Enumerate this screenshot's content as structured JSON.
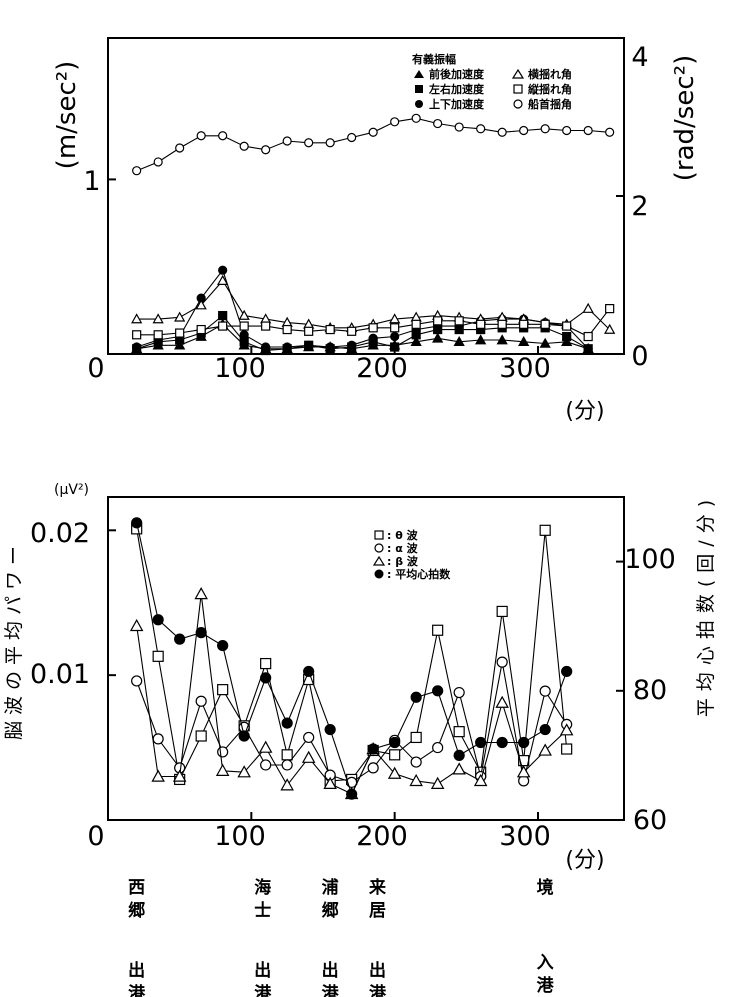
{
  "chart_data": [
    {
      "type": "line",
      "title": "有義振幅",
      "xlabel": "(分)",
      "ylabel_left": "(m/sec²)",
      "ylabel_right": "(rad/sec²)",
      "xlim": [
        0,
        360
      ],
      "ylim_left": [
        0,
        1.81
      ],
      "ylim_right": [
        0,
        4
      ],
      "x_ticks": [
        "0",
        "100",
        "200",
        "300"
      ],
      "y_ticks_left": [
        "1"
      ],
      "y_ticks_right": [
        "0",
        "2",
        "4"
      ],
      "legend_title": "有義振幅",
      "legend_position": "top-right",
      "series": [
        {
          "name": "前後加速度",
          "marker": "filled-triangle",
          "axis": "left",
          "x": [
            20,
            35,
            50,
            65,
            80,
            95,
            110,
            125,
            140,
            155,
            170,
            185,
            200,
            215,
            230,
            245,
            260,
            275,
            290,
            305,
            320,
            335
          ],
          "values": [
            0.03,
            0.05,
            0.05,
            0.1,
            0.17,
            0.05,
            0.03,
            0.03,
            0.04,
            0.04,
            0.03,
            0.05,
            0.05,
            0.07,
            0.09,
            0.07,
            0.08,
            0.08,
            0.07,
            0.06,
            0.07,
            0.03
          ]
        },
        {
          "name": "左右加速度",
          "marker": "filled-square",
          "axis": "left",
          "x": [
            20,
            35,
            50,
            65,
            80,
            95,
            110,
            125,
            140,
            155,
            170,
            185,
            200,
            215,
            230,
            245,
            260,
            275,
            290,
            305,
            320,
            335
          ],
          "values": [
            0.03,
            0.07,
            0.08,
            0.12,
            0.22,
            0.07,
            0.02,
            0.03,
            0.05,
            0.03,
            0.04,
            0.07,
            0.04,
            0.11,
            0.14,
            0.14,
            0.14,
            0.15,
            0.15,
            0.15,
            0.1,
            0.03
          ]
        },
        {
          "name": "上下加速度",
          "marker": "filled-circle",
          "axis": "left",
          "x": [
            20,
            35,
            50,
            65,
            80,
            95,
            110,
            125,
            140,
            155,
            170,
            185,
            200,
            215,
            230,
            245,
            260,
            275,
            290,
            305,
            320,
            335
          ],
          "values": [
            0.04,
            0.08,
            0.1,
            0.32,
            0.48,
            0.11,
            0.04,
            0.04,
            0.05,
            0.04,
            0.05,
            0.09,
            0.1,
            0.14,
            0.16,
            0.16,
            0.19,
            0.2,
            0.2,
            0.18,
            0.16,
            0.03
          ]
        },
        {
          "name": "横揺れ角",
          "marker": "open-triangle",
          "axis": "left",
          "x": [
            20,
            35,
            50,
            65,
            80,
            95,
            110,
            125,
            140,
            155,
            170,
            185,
            200,
            215,
            230,
            245,
            260,
            275,
            290,
            305,
            320,
            335,
            350
          ],
          "values": [
            0.2,
            0.2,
            0.21,
            0.28,
            0.42,
            0.22,
            0.2,
            0.18,
            0.17,
            0.15,
            0.15,
            0.17,
            0.2,
            0.21,
            0.22,
            0.21,
            0.2,
            0.21,
            0.2,
            0.18,
            0.17,
            0.26,
            0.14
          ]
        },
        {
          "name": "縦揺れ角",
          "marker": "open-square",
          "axis": "left",
          "x": [
            20,
            35,
            50,
            65,
            80,
            95,
            110,
            125,
            140,
            155,
            170,
            185,
            200,
            215,
            230,
            245,
            260,
            275,
            290,
            305,
            320,
            335,
            350
          ],
          "values": [
            0.11,
            0.11,
            0.12,
            0.14,
            0.16,
            0.16,
            0.16,
            0.14,
            0.13,
            0.14,
            0.13,
            0.15,
            0.15,
            0.17,
            0.19,
            0.19,
            0.17,
            0.17,
            0.17,
            0.17,
            0.16,
            0.1,
            0.26
          ]
        },
        {
          "name": "船首揺角",
          "marker": "open-circle",
          "axis": "left",
          "x": [
            20,
            35,
            50,
            65,
            80,
            95,
            110,
            125,
            140,
            155,
            170,
            185,
            200,
            215,
            230,
            245,
            260,
            275,
            290,
            305,
            320,
            335,
            350
          ],
          "values": [
            1.05,
            1.1,
            1.18,
            1.25,
            1.25,
            1.19,
            1.17,
            1.22,
            1.21,
            1.21,
            1.24,
            1.27,
            1.33,
            1.35,
            1.32,
            1.3,
            1.29,
            1.27,
            1.28,
            1.29,
            1.28,
            1.28,
            1.27
          ]
        }
      ]
    },
    {
      "type": "line",
      "title": "",
      "xlabel": "(分)",
      "ylabel_left": "脳波の平均パワー",
      "ylabel_left_unit": "(μV²)",
      "ylabel_right": "平均心拍数(回/分)",
      "xlim": [
        0,
        360
      ],
      "ylim_left": [
        0,
        0.0223
      ],
      "ylim_right": [
        60,
        110
      ],
      "x_ticks": [
        "0",
        "100",
        "200",
        "300"
      ],
      "y_ticks_left": [
        "0.02",
        "0.01"
      ],
      "y_ticks_right": [
        "60",
        "80",
        "100"
      ],
      "legend_position": "top-right",
      "series": [
        {
          "name": "θ 波",
          "legend_label": ": θ 波",
          "marker": "open-square",
          "axis": "left",
          "x": [
            20,
            35,
            50,
            65,
            80,
            95,
            110,
            125,
            140,
            155,
            170,
            185,
            200,
            215,
            230,
            245,
            260,
            275,
            290,
            305,
            320
          ],
          "values": [
            0.0201,
            0.0113,
            0.0028,
            0.0058,
            0.009,
            0.0065,
            0.0108,
            0.0045,
            0.0097,
            0.0027,
            0.0028,
            0.0048,
            0.0045,
            0.0057,
            0.0131,
            0.0061,
            0.0033,
            0.0144,
            0.0041,
            0.02,
            0.0049
          ]
        },
        {
          "name": "α 波",
          "legend_label": ": α 波",
          "marker": "open-circle",
          "axis": "left",
          "x": [
            20,
            35,
            50,
            65,
            80,
            95,
            110,
            125,
            140,
            155,
            170,
            185,
            200,
            215,
            230,
            245,
            260,
            275,
            290,
            305,
            320
          ],
          "values": [
            0.0096,
            0.0056,
            0.0036,
            0.0082,
            0.0047,
            0.0064,
            0.0038,
            0.0038,
            0.0057,
            0.0031,
            0.0026,
            0.0036,
            0.0055,
            0.004,
            0.005,
            0.0088,
            0.003,
            0.0109,
            0.0027,
            0.0089,
            0.0066
          ]
        },
        {
          "name": "β 波",
          "legend_label": ": β 波",
          "marker": "open-triangle",
          "axis": "left",
          "x": [
            20,
            35,
            50,
            65,
            80,
            95,
            110,
            125,
            140,
            155,
            170,
            185,
            200,
            215,
            230,
            245,
            260,
            275,
            290,
            305,
            320
          ],
          "values": [
            0.0134,
            0.003,
            0.003,
            0.0156,
            0.0034,
            0.0033,
            0.005,
            0.0024,
            0.0043,
            0.0025,
            0.0018,
            0.0049,
            0.0032,
            0.0027,
            0.0025,
            0.0035,
            0.0027,
            0.0081,
            0.0033,
            0.0048,
            0.0062
          ]
        },
        {
          "name": "平均心拍数",
          "legend_label": ": 平均心拍数",
          "marker": "filled-circle",
          "axis": "right",
          "x": [
            20,
            35,
            50,
            65,
            80,
            95,
            110,
            125,
            140,
            155,
            170,
            185,
            200,
            215,
            230,
            245,
            260,
            275,
            290,
            305,
            320
          ],
          "values": [
            106,
            91,
            88,
            89,
            87,
            73,
            82,
            75,
            83,
            74,
            64,
            71,
            72,
            79,
            80,
            70,
            72,
            72,
            72,
            74,
            83
          ]
        }
      ]
    }
  ],
  "ports": [
    {
      "name": "西郷",
      "event": "出港",
      "x": 20
    },
    {
      "name": "海士",
      "event": "出港",
      "x": 108
    },
    {
      "name": "浦郷",
      "event": "出港",
      "x": 155
    },
    {
      "name": "来居",
      "event": "出港",
      "x": 188
    },
    {
      "name": "境",
      "event": "入港",
      "x": 305
    }
  ]
}
